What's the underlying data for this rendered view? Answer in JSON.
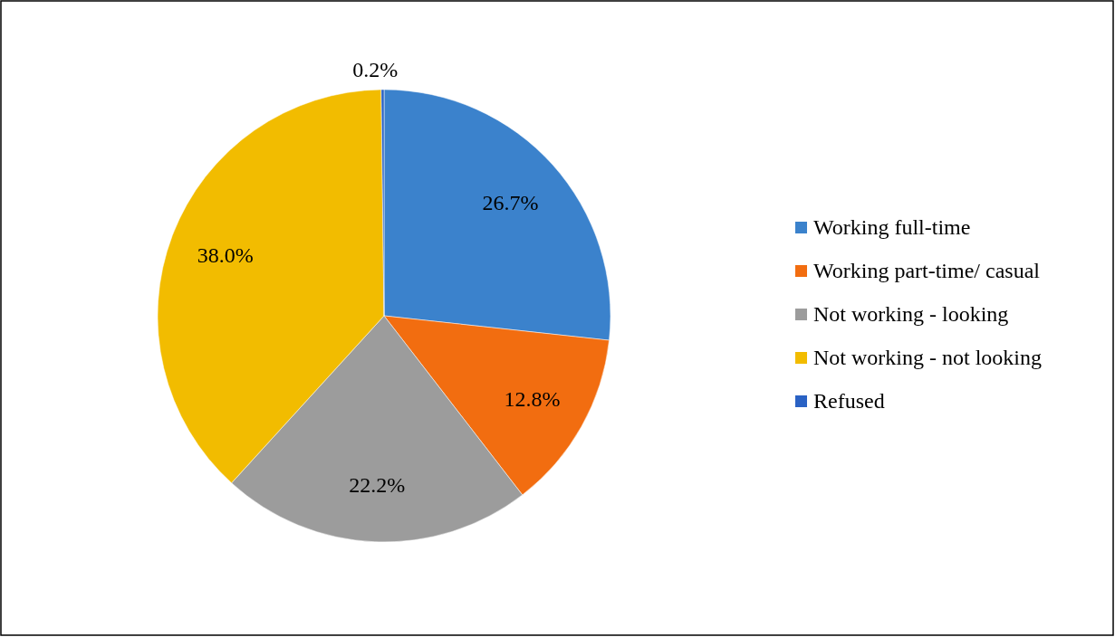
{
  "chart_data": {
    "type": "pie",
    "categories": [
      "Working full-time",
      "Working part-time/ casual",
      "Not working - looking",
      "Not working - not looking",
      "Refused"
    ],
    "values": [
      26.7,
      12.8,
      22.2,
      38.0,
      0.2
    ],
    "colors": [
      "#3b82cc",
      "#f26d10",
      "#9c9c9c",
      "#f2bc00",
      "#2a62c4"
    ],
    "value_labels": [
      "26.7%",
      "12.8%",
      "22.2%",
      "38.0%",
      "0.2%"
    ],
    "legend": "right"
  }
}
